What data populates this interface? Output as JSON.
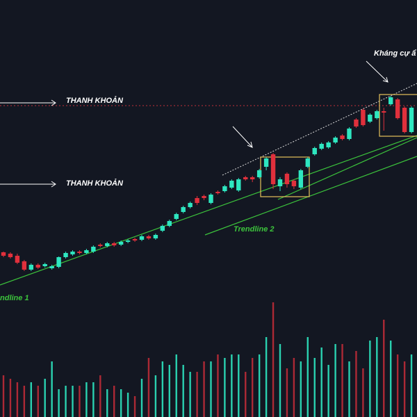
{
  "chart_data": {
    "type": "candlestick",
    "open": [
      237,
      235,
      232,
      224,
      212,
      219,
      217,
      214,
      216,
      230,
      234,
      238,
      236,
      238,
      248,
      246,
      250,
      248,
      252,
      256,
      255,
      260,
      257,
      268,
      275,
      285,
      295,
      302,
      315,
      318,
      308,
      324,
      325,
      330,
      326,
      345,
      345,
      345,
      360,
      378,
      332,
      350,
      340,
      330,
      360,
      378,
      386,
      388,
      395,
      405,
      400,
      428,
      442,
      425,
      430,
      440,
      450,
      457,
      445,
      410
    ],
    "high": [
      238,
      237,
      235,
      226,
      221,
      221,
      222,
      219,
      231,
      238,
      240,
      240,
      242,
      247,
      250,
      252,
      252,
      254,
      256,
      258,
      262,
      262,
      264,
      277,
      284,
      294,
      304,
      310,
      318,
      320,
      322,
      326,
      334,
      342,
      344,
      347,
      347,
      357,
      374,
      380,
      345,
      352,
      342,
      357,
      374,
      389,
      395,
      397,
      404,
      407,
      417,
      430,
      444,
      437,
      442,
      445,
      462,
      459,
      447,
      447
    ],
    "low": [
      230,
      228,
      220,
      210,
      210,
      213,
      215,
      212,
      214,
      228,
      232,
      234,
      234,
      236,
      244,
      244,
      245,
      246,
      250,
      252,
      253,
      255,
      255,
      266,
      273,
      283,
      293,
      300,
      305,
      312,
      306,
      320,
      323,
      328,
      324,
      340,
      338,
      343,
      355,
      328,
      325,
      330,
      328,
      328,
      358,
      376,
      384,
      386,
      393,
      398,
      398,
      416,
      418,
      423,
      428,
      412,
      448,
      428,
      408,
      408
    ],
    "close": [
      232,
      230,
      222,
      212,
      219,
      215,
      220,
      217,
      230,
      236,
      238,
      236,
      240,
      245,
      246,
      250,
      247,
      252,
      254,
      254,
      260,
      257,
      262,
      275,
      282,
      292,
      302,
      308,
      308,
      315,
      320,
      322,
      332,
      340,
      342,
      342,
      342,
      355,
      372,
      335,
      342,
      335,
      332,
      355,
      372,
      387,
      393,
      395,
      402,
      400,
      415,
      418,
      420,
      435,
      440,
      438,
      460,
      430,
      410,
      445
    ],
    "volume": [
      60,
      55,
      50,
      45,
      50,
      45,
      55,
      80,
      40,
      45,
      45,
      45,
      50,
      50,
      60,
      40,
      45,
      40,
      35,
      30,
      55,
      85,
      60,
      80,
      75,
      90,
      75,
      65,
      65,
      80,
      80,
      90,
      85,
      90,
      90,
      65,
      85,
      90,
      115,
      165,
      105,
      70,
      85,
      80,
      115,
      85,
      100,
      75,
      105,
      105,
      80,
      95,
      70,
      110,
      115,
      140,
      110,
      90,
      80,
      90
    ],
    "ylim": [
      0,
      600
    ],
    "y2lim": [
      0,
      600
    ],
    "up_color": "#2ee6c0",
    "down_color": "#e0303c",
    "annotations": [
      "THANH KHOẢN",
      "THANH KHOẢN",
      "Kháng cự ẩ",
      "Trendline 2",
      "ndline 1"
    ]
  }
}
